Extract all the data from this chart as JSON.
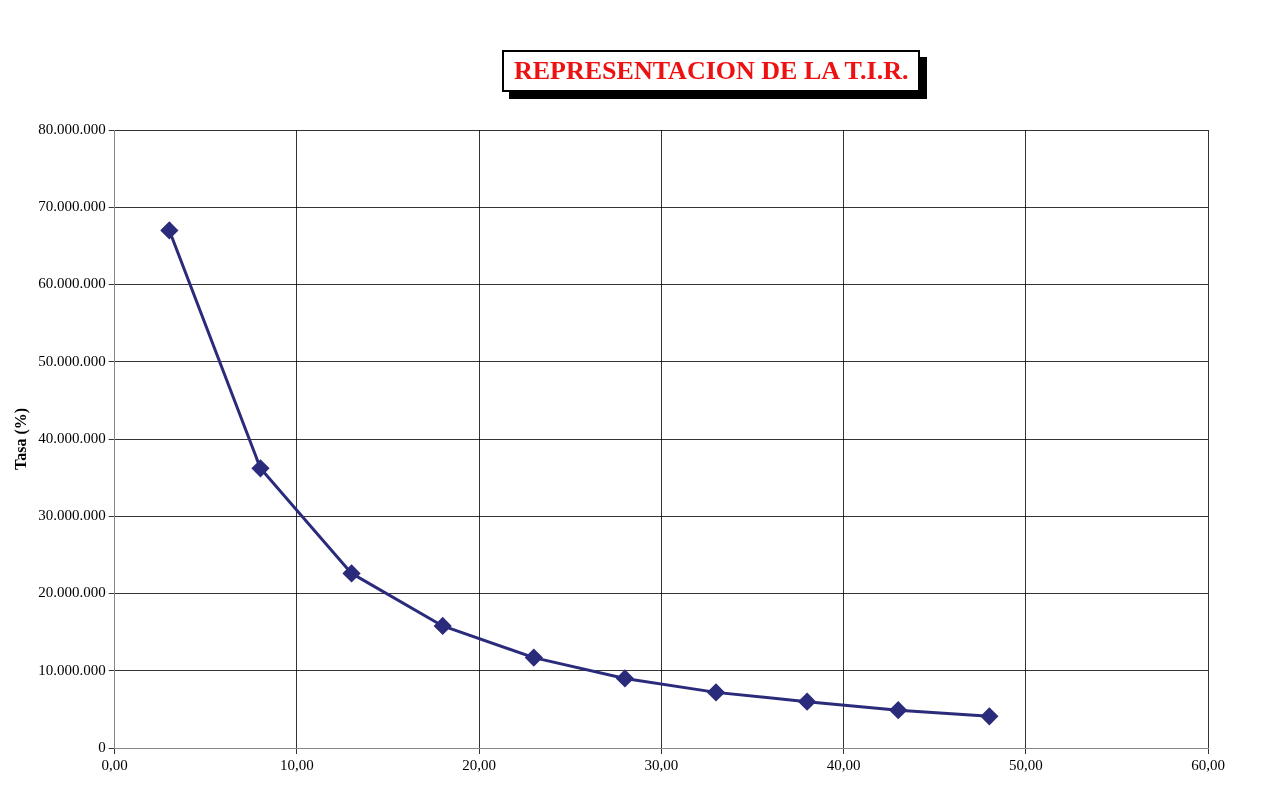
{
  "chart_data": {
    "type": "line",
    "title": "REPRESENTACION DE LA T.I.R.",
    "ylabel": "Tasa (%)",
    "x": [
      3,
      8,
      13,
      18,
      23,
      28,
      33,
      38,
      43,
      48
    ],
    "series": [
      {
        "color": "#2b2b7c",
        "values": [
          67000000,
          36200000,
          22600000,
          15800000,
          11700000,
          9000000,
          7200000,
          6000000,
          4900000,
          4100000
        ]
      }
    ],
    "xlim": [
      0,
      60
    ],
    "xticks": [
      {
        "value": 0,
        "label": "0,00"
      },
      {
        "value": 10,
        "label": "10,00"
      },
      {
        "value": 20,
        "label": "20,00"
      },
      {
        "value": 30,
        "label": "30,00"
      },
      {
        "value": 40,
        "label": "40,00"
      },
      {
        "value": 50,
        "label": "50,00"
      },
      {
        "value": 60,
        "label": "60,00"
      }
    ],
    "ylim": [
      0,
      80000000
    ],
    "yticks": [
      0,
      {
        "value": 10000000,
        "label": "10.000.000"
      },
      {
        "value": 20000000,
        "label": "20.000.000"
      },
      {
        "value": 30000000,
        "label": "30.000.000"
      },
      {
        "value": 40000000,
        "label": "40.000.000"
      },
      {
        "value": 50000000,
        "label": "50.000.000"
      },
      {
        "value": 60000000,
        "label": "60.000.000"
      },
      {
        "value": 70000000,
        "label": "70.000.000"
      },
      {
        "value": 80000000,
        "label": "80.000.000"
      }
    ],
    "grid": true,
    "legend": false,
    "marker": "diamond",
    "line_style": "solid"
  }
}
